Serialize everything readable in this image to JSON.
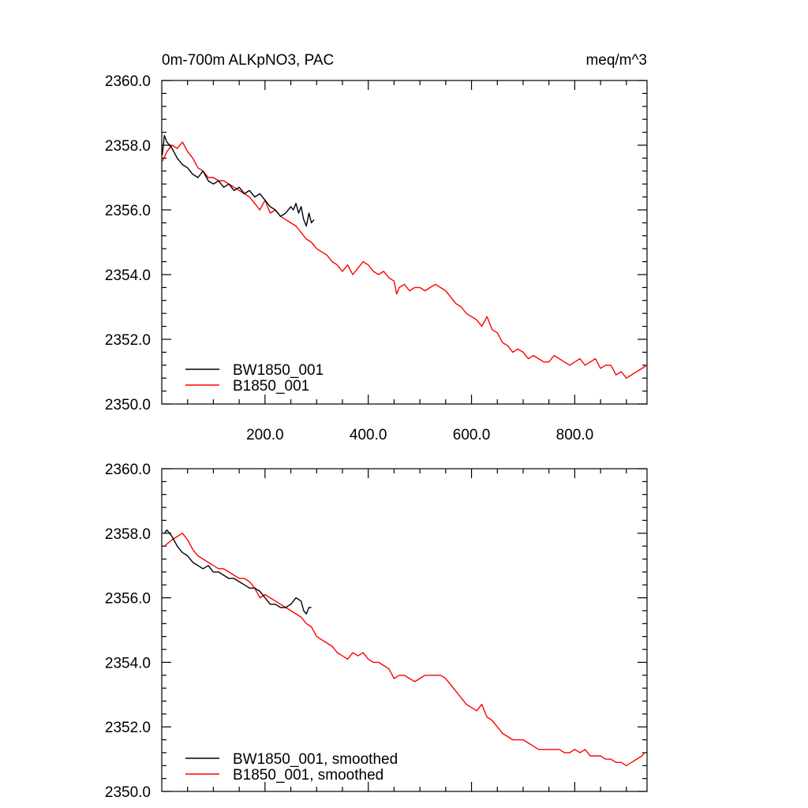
{
  "figure": {
    "title_left": "0m-700m ALKpNO3, PAC",
    "title_right": "meq/m^3"
  },
  "chart_data": [
    {
      "type": "line",
      "name": "top-panel",
      "title": "0m-700m ALKpNO3, PAC",
      "units": "meq/m^3",
      "xlim": [
        0,
        940
      ],
      "ylim": [
        2350,
        2360
      ],
      "x_ticks": [
        200,
        400,
        600,
        800
      ],
      "x_tick_labels": [
        "200.0",
        "400.0",
        "600.0",
        "800.0"
      ],
      "y_ticks": [
        2350,
        2352,
        2354,
        2356,
        2358,
        2360
      ],
      "y_tick_labels": [
        "2350.0",
        "2352.0",
        "2354.0",
        "2356.0",
        "2358.0",
        "2360.0"
      ],
      "legend_position": "bottom-left",
      "series": [
        {
          "name": "BW1850_001",
          "color": "#000000",
          "x": [
            1,
            5,
            10,
            15,
            20,
            30,
            40,
            50,
            60,
            70,
            80,
            90,
            100,
            110,
            120,
            130,
            140,
            150,
            160,
            170,
            180,
            190,
            200,
            210,
            220,
            230,
            240,
            250,
            255,
            260,
            265,
            270,
            275,
            280,
            285,
            290,
            295
          ],
          "y": [
            2357.7,
            2358.3,
            2358.1,
            2358.0,
            2357.9,
            2357.6,
            2357.4,
            2357.3,
            2357.1,
            2357.0,
            2357.2,
            2356.9,
            2356.8,
            2356.9,
            2356.7,
            2356.8,
            2356.6,
            2356.7,
            2356.5,
            2356.6,
            2356.4,
            2356.5,
            2356.3,
            2356.1,
            2356.0,
            2355.8,
            2355.9,
            2356.1,
            2356.0,
            2356.2,
            2355.9,
            2356.1,
            2355.7,
            2355.5,
            2355.9,
            2355.6,
            2355.7
          ]
        },
        {
          "name": "B1850_001",
          "color": "#ff0000",
          "x": [
            1,
            10,
            20,
            30,
            40,
            50,
            60,
            70,
            80,
            90,
            100,
            110,
            120,
            130,
            140,
            150,
            160,
            170,
            180,
            190,
            200,
            210,
            220,
            230,
            240,
            250,
            260,
            270,
            280,
            290,
            300,
            310,
            320,
            330,
            340,
            350,
            360,
            370,
            380,
            390,
            400,
            410,
            420,
            430,
            440,
            450,
            455,
            460,
            470,
            480,
            490,
            500,
            510,
            520,
            530,
            540,
            550,
            560,
            570,
            580,
            590,
            600,
            610,
            620,
            630,
            640,
            650,
            660,
            670,
            680,
            690,
            700,
            710,
            720,
            730,
            740,
            750,
            760,
            770,
            780,
            790,
            800,
            810,
            820,
            830,
            840,
            850,
            860,
            870,
            880,
            890,
            900,
            910,
            920,
            930,
            940
          ],
          "y": [
            2357.5,
            2357.8,
            2358.0,
            2357.9,
            2358.1,
            2357.8,
            2357.6,
            2357.3,
            2357.2,
            2357.0,
            2357.0,
            2356.9,
            2356.9,
            2356.8,
            2356.7,
            2356.6,
            2356.5,
            2356.4,
            2356.2,
            2356.0,
            2356.3,
            2355.9,
            2356.0,
            2355.8,
            2355.7,
            2355.6,
            2355.5,
            2355.3,
            2355.1,
            2355.0,
            2354.8,
            2354.7,
            2354.6,
            2354.4,
            2354.3,
            2354.1,
            2354.3,
            2354.0,
            2354.2,
            2354.4,
            2354.3,
            2354.1,
            2354.0,
            2354.1,
            2353.9,
            2353.8,
            2353.4,
            2353.6,
            2353.7,
            2353.5,
            2353.6,
            2353.6,
            2353.5,
            2353.6,
            2353.7,
            2353.6,
            2353.5,
            2353.3,
            2353.1,
            2353.0,
            2352.8,
            2352.7,
            2352.6,
            2352.4,
            2352.7,
            2352.3,
            2352.2,
            2351.9,
            2351.8,
            2351.6,
            2351.7,
            2351.6,
            2351.4,
            2351.5,
            2351.4,
            2351.3,
            2351.3,
            2351.5,
            2351.4,
            2351.3,
            2351.2,
            2351.3,
            2351.4,
            2351.2,
            2351.3,
            2351.4,
            2351.1,
            2351.2,
            2351.2,
            2350.9,
            2351.0,
            2350.8,
            2350.9,
            2351.0,
            2351.1,
            2351.2
          ]
        }
      ]
    },
    {
      "type": "line",
      "name": "bottom-panel",
      "title": "",
      "xlim": [
        0,
        940
      ],
      "ylim": [
        2350,
        2360
      ],
      "x_ticks": [
        200,
        400,
        600,
        800
      ],
      "y_ticks": [
        2350,
        2352,
        2354,
        2356,
        2358,
        2360
      ],
      "y_tick_labels": [
        "2350.0",
        "2352.0",
        "2354.0",
        "2356.0",
        "2358.0",
        "2360.0"
      ],
      "legend_position": "bottom-left",
      "series": [
        {
          "name": "BW1850_001, smoothed",
          "color": "#000000",
          "x": [
            5,
            10,
            15,
            20,
            30,
            40,
            50,
            60,
            70,
            80,
            90,
            100,
            110,
            120,
            130,
            140,
            150,
            160,
            170,
            180,
            190,
            200,
            210,
            220,
            230,
            240,
            250,
            260,
            270,
            275,
            280,
            285,
            290
          ],
          "y": [
            2358.0,
            2358.1,
            2358.0,
            2357.9,
            2357.6,
            2357.4,
            2357.3,
            2357.1,
            2357.0,
            2356.9,
            2357.0,
            2356.8,
            2356.8,
            2356.7,
            2356.6,
            2356.6,
            2356.5,
            2356.4,
            2356.3,
            2356.3,
            2356.2,
            2356.0,
            2355.8,
            2355.8,
            2355.7,
            2355.7,
            2355.8,
            2356.0,
            2355.9,
            2355.6,
            2355.5,
            2355.7,
            2355.7
          ]
        },
        {
          "name": "B1850_001, smoothed",
          "color": "#ff0000",
          "x": [
            5,
            20,
            30,
            40,
            50,
            60,
            70,
            80,
            90,
            100,
            110,
            120,
            130,
            140,
            150,
            160,
            170,
            180,
            190,
            200,
            210,
            220,
            230,
            240,
            250,
            260,
            270,
            280,
            290,
            300,
            310,
            320,
            330,
            340,
            350,
            360,
            370,
            380,
            390,
            400,
            410,
            420,
            430,
            440,
            450,
            460,
            470,
            480,
            490,
            500,
            510,
            520,
            530,
            540,
            550,
            560,
            570,
            580,
            590,
            600,
            610,
            620,
            630,
            640,
            650,
            660,
            670,
            680,
            690,
            700,
            710,
            720,
            730,
            740,
            750,
            760,
            770,
            780,
            790,
            800,
            810,
            820,
            830,
            840,
            850,
            860,
            870,
            880,
            890,
            900,
            910,
            920,
            930,
            935
          ],
          "y": [
            2357.6,
            2357.8,
            2357.9,
            2358.0,
            2357.8,
            2357.5,
            2357.3,
            2357.2,
            2357.1,
            2357.0,
            2356.9,
            2356.9,
            2356.8,
            2356.7,
            2356.6,
            2356.6,
            2356.5,
            2356.3,
            2356.0,
            2356.1,
            2356.0,
            2355.9,
            2355.8,
            2355.7,
            2355.6,
            2355.5,
            2355.4,
            2355.2,
            2355.1,
            2354.8,
            2354.7,
            2354.6,
            2354.5,
            2354.3,
            2354.2,
            2354.1,
            2354.3,
            2354.2,
            2354.3,
            2354.1,
            2354.0,
            2354.0,
            2353.9,
            2353.8,
            2353.5,
            2353.6,
            2353.6,
            2353.5,
            2353.4,
            2353.5,
            2353.6,
            2353.6,
            2353.6,
            2353.6,
            2353.5,
            2353.3,
            2353.1,
            2352.9,
            2352.7,
            2352.6,
            2352.5,
            2352.7,
            2352.3,
            2352.2,
            2352.0,
            2351.8,
            2351.7,
            2351.6,
            2351.6,
            2351.6,
            2351.5,
            2351.4,
            2351.3,
            2351.3,
            2351.3,
            2351.3,
            2351.3,
            2351.2,
            2351.2,
            2351.3,
            2351.2,
            2351.3,
            2351.1,
            2351.1,
            2351.1,
            2351.0,
            2351.0,
            2350.9,
            2350.9,
            2350.8,
            2350.9,
            2351.0,
            2351.1,
            2351.2
          ]
        }
      ]
    }
  ]
}
